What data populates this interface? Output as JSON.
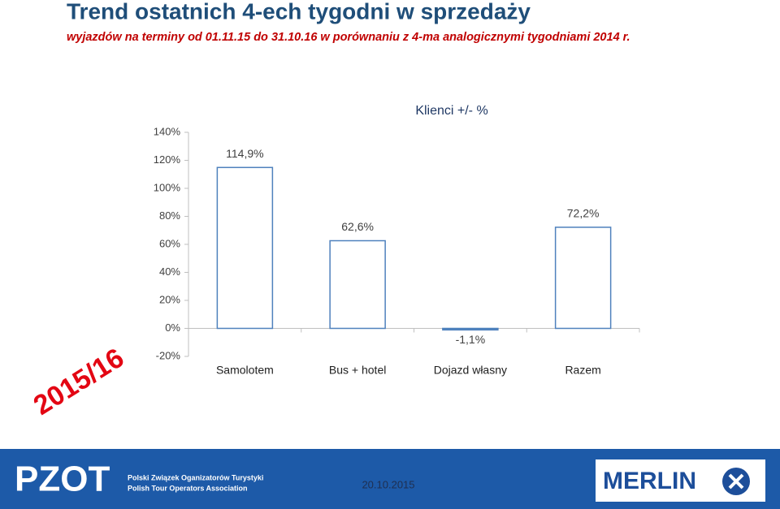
{
  "header": {
    "title": "Trend ostatnich 4-ech tygodni w sprzedaży",
    "subtitle": "wyjazdów na terminy od 01.11.15 do 31.10.16 w porównaniu z 4-ma analogicznymi tygodniami 2014 r."
  },
  "badge": "2015/16",
  "footer": {
    "logo_left": "PZOT",
    "org_name_pl": "Polski Związek Oganizatorów Turystyki",
    "org_name_en": "Polish Tour Operators Association",
    "date": "20.10.2015",
    "logo_right": "MERLIN"
  },
  "chart_data": {
    "type": "bar",
    "title": "Klienci +/- %",
    "categories": [
      "Samolotem",
      "Bus + hotel",
      "Dojazd własny",
      "Razem"
    ],
    "values": [
      114.9,
      62.6,
      -1.1,
      72.2
    ],
    "value_labels": [
      "114,9%",
      "62,6%",
      "-1,1%",
      "72,2%"
    ],
    "color": "#4f81bd",
    "ylim": [
      -20,
      140
    ],
    "yticks": [
      {
        "value": -20,
        "label": "-20%"
      },
      {
        "value": 0,
        "label": "0%"
      },
      {
        "value": 20,
        "label": "20%"
      },
      {
        "value": 40,
        "label": "40%"
      },
      {
        "value": 60,
        "label": "60%"
      },
      {
        "value": 80,
        "label": "80%"
      },
      {
        "value": 100,
        "label": "100%"
      },
      {
        "value": 120,
        "label": "120%"
      },
      {
        "value": 140,
        "label": "140%"
      }
    ],
    "grid": false
  }
}
